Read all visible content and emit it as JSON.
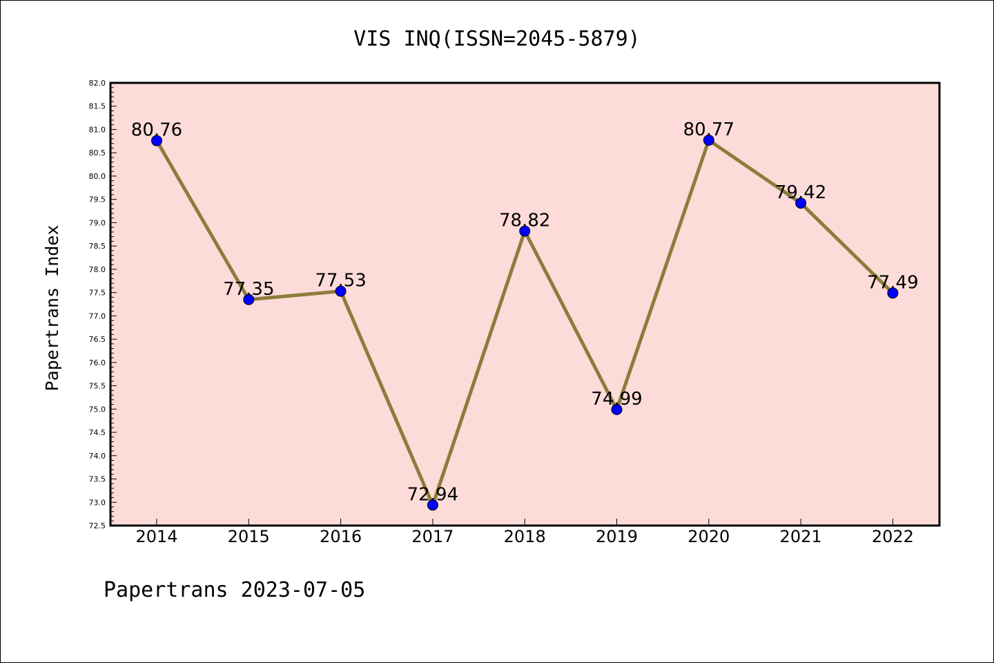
{
  "chart_data": {
    "type": "line",
    "title": "VIS INQ(ISSN=2045-5879)",
    "ylabel": "Papertrans Index",
    "xlabel": "",
    "categories": [
      "2014",
      "2015",
      "2016",
      "2017",
      "2018",
      "2019",
      "2020",
      "2021",
      "2022"
    ],
    "values": [
      80.76,
      77.35,
      77.53,
      72.94,
      78.82,
      74.99,
      80.77,
      79.42,
      77.49
    ],
    "data_labels": [
      "80.76",
      "77.35",
      "77.53",
      "72.94",
      "78.82",
      "74.99",
      "80.77",
      "79.42",
      "77.49"
    ],
    "ylim": [
      72.5,
      82.0
    ],
    "ytick_labels": [
      "72.5",
      "73.0",
      "73.5",
      "74.0",
      "74.5",
      "75.0",
      "75.5",
      "76.0",
      "76.5",
      "77.0",
      "77.5",
      "78.0",
      "78.5",
      "79.0",
      "79.5",
      "80.0",
      "80.5",
      "81.0",
      "81.5",
      "82.0"
    ],
    "grid": false,
    "legend": "none",
    "colors": {
      "plot_background": "#fddbd8",
      "line": "#8c7c3c",
      "marker": "#0000ff"
    }
  },
  "footer": {
    "text": "Papertrans 2023-07-05"
  }
}
